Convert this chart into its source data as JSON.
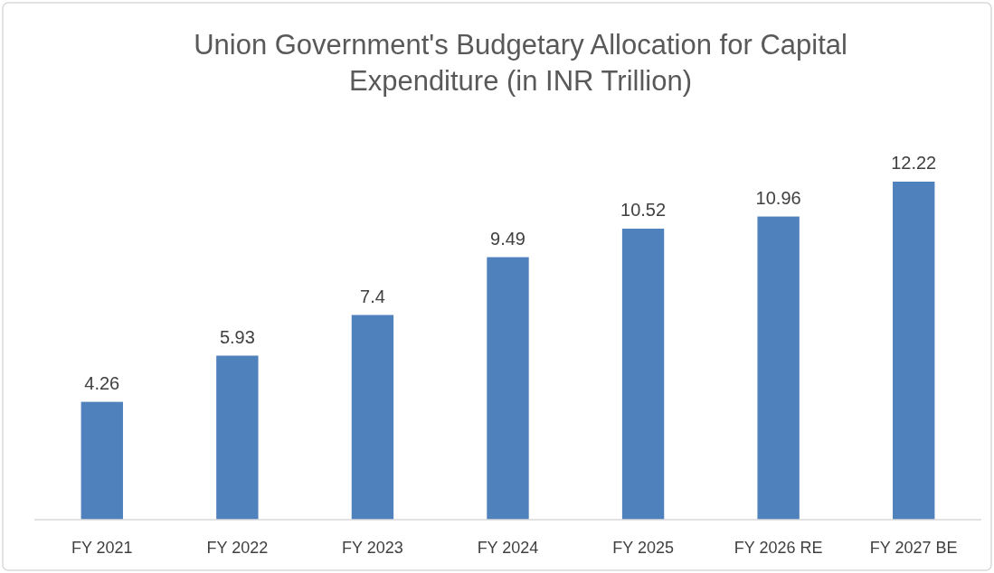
{
  "chart_data": {
    "type": "bar",
    "title": "Union Government's Budgetary Allocation for Capital Expenditure (in INR Trillion)",
    "categories": [
      "FY 2021",
      "FY 2022",
      "FY 2023",
      "FY 2024",
      "FY 2025",
      "FY 2026 RE",
      "FY 2027 BE"
    ],
    "values": [
      4.26,
      5.93,
      7.4,
      9.49,
      10.52,
      10.96,
      12.22
    ],
    "color": "#4f81bd",
    "data_labels": true
  }
}
